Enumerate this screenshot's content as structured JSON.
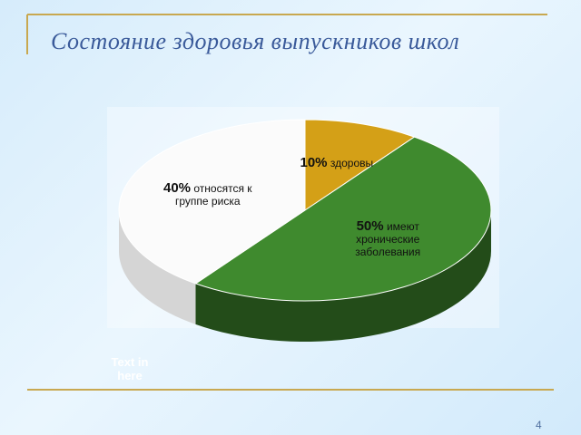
{
  "chart_data": {
    "type": "pie",
    "title": "Состояние здоровья выпускников школ",
    "categories": [
      "здоровы",
      "имеют хронические заболевания",
      "относятся к группе риска"
    ],
    "values": [
      10,
      50,
      40
    ],
    "value_labels": [
      "10%",
      "50%",
      "40%"
    ],
    "colors": [
      "#d4a017",
      "#3f8a2e",
      "#fbfbfb"
    ]
  },
  "slide": {
    "placeholder_text": "Text in here",
    "page_number": "4"
  }
}
